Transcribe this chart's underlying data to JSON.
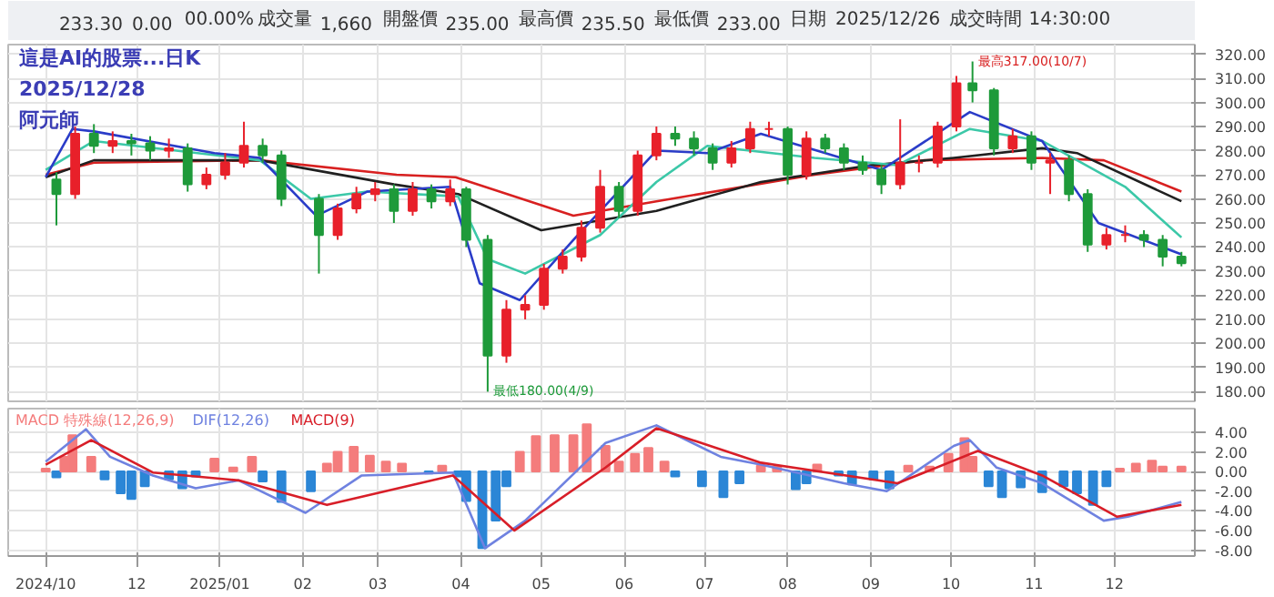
{
  "chart_data": [
    {
      "type": "other",
      "annotations": [
        "233.30",
        "0.00",
        "00.00%",
        "成交量",
        "1,660",
        "開盤價",
        "235.00",
        "最高價",
        "235.50",
        "最低價",
        "233.00",
        "日期",
        "2025/12/26",
        "成交時間",
        "14:30:00"
      ]
    },
    {
      "type": "candlestick",
      "title": "這是AI的股票...日K",
      "subtitle": "2025/12/28",
      "annotations": [
        "阿元師",
        {
          "text": "最高317.00(10/7)",
          "x": "2025-10-07",
          "y": 317
        },
        {
          "text": "最低180.00(4/9)",
          "x": "2025-04-09",
          "y": 180
        }
      ],
      "x": [
        "2024-11-01",
        "2024-11-08",
        "2024-11-15",
        "2024-11-22",
        "2024-11-29",
        "2024-12-06",
        "2024-12-13",
        "2024-12-20",
        "2024-12-27",
        "2025-01-03",
        "2025-01-10",
        "2025-01-17",
        "2025-01-24",
        "2025-02-07",
        "2025-02-14",
        "2025-02-21",
        "2025-02-28",
        "2025-03-07",
        "2025-03-14",
        "2025-03-21",
        "2025-03-28",
        "2025-04-03",
        "2025-04-11",
        "2025-04-18",
        "2025-04-25",
        "2025-05-02",
        "2025-05-09",
        "2025-05-16",
        "2025-05-23",
        "2025-05-30",
        "2025-06-06",
        "2025-06-13",
        "2025-06-20",
        "2025-06-27",
        "2025-07-04",
        "2025-07-11",
        "2025-07-18",
        "2025-07-25",
        "2025-08-01",
        "2025-08-08",
        "2025-08-15",
        "2025-08-22",
        "2025-08-29",
        "2025-09-05",
        "2025-09-12",
        "2025-09-19",
        "2025-09-26",
        "2025-10-03",
        "2025-10-09",
        "2025-10-17",
        "2025-10-24",
        "2025-10-31",
        "2025-11-07",
        "2025-11-14",
        "2025-11-21",
        "2025-11-28",
        "2025-12-05",
        "2025-12-12",
        "2025-12-19",
        "2025-12-26"
      ],
      "ohlc": [
        [
          268,
          271,
          249,
          262
        ],
        [
          262,
          290,
          260,
          287
        ],
        [
          287,
          291,
          279,
          282
        ],
        [
          282,
          288,
          279,
          284
        ],
        [
          284,
          287,
          278,
          283
        ],
        [
          283,
          286,
          276,
          280
        ],
        [
          280,
          285,
          277,
          281
        ],
        [
          281,
          283,
          263,
          266
        ],
        [
          266,
          273,
          264,
          270
        ],
        [
          270,
          279,
          268,
          275
        ],
        [
          275,
          292,
          273,
          282
        ],
        [
          282,
          285,
          275,
          278
        ],
        [
          278,
          280,
          257,
          260
        ],
        [
          260,
          262,
          229,
          245
        ],
        [
          245,
          258,
          243,
          256
        ],
        [
          256,
          265,
          254,
          262
        ],
        [
          262,
          267,
          259,
          264
        ],
        [
          264,
          266,
          250,
          255
        ],
        [
          255,
          267,
          253,
          264
        ],
        [
          264,
          266,
          256,
          259
        ],
        [
          259,
          268,
          257,
          264
        ],
        [
          264,
          265,
          240,
          243
        ],
        [
          243,
          245,
          180,
          195
        ],
        [
          195,
          218,
          192,
          214
        ],
        [
          214,
          220,
          210,
          216
        ],
        [
          216,
          233,
          214,
          231
        ],
        [
          231,
          239,
          229,
          236
        ],
        [
          236,
          251,
          234,
          248
        ],
        [
          248,
          272,
          246,
          265
        ],
        [
          265,
          267,
          252,
          255
        ],
        [
          255,
          280,
          253,
          278
        ],
        [
          278,
          290,
          276,
          287
        ],
        [
          287,
          290,
          282,
          285
        ],
        [
          285,
          288,
          278,
          281
        ],
        [
          281,
          283,
          272,
          275
        ],
        [
          275,
          284,
          273,
          281
        ],
        [
          281,
          292,
          279,
          289
        ],
        [
          289,
          292,
          286,
          289
        ],
        [
          289,
          290,
          266,
          270
        ],
        [
          270,
          288,
          268,
          285
        ],
        [
          285,
          287,
          279,
          281
        ],
        [
          281,
          283,
          272,
          275
        ],
        [
          275,
          278,
          270,
          272
        ],
        [
          272,
          274,
          262,
          266
        ],
        [
          266,
          293,
          264,
          275
        ],
        [
          275,
          278,
          271,
          275
        ],
        [
          275,
          292,
          273,
          290
        ],
        [
          290,
          311,
          288,
          308
        ],
        [
          308,
          317,
          300,
          305
        ],
        [
          305,
          306,
          278,
          281
        ],
        [
          281,
          289,
          279,
          286
        ],
        [
          286,
          288,
          272,
          275
        ],
        [
          275,
          279,
          262,
          276
        ],
        [
          276,
          278,
          259,
          262
        ],
        [
          262,
          264,
          238,
          241
        ],
        [
          241,
          248,
          239,
          245
        ],
        [
          245,
          249,
          242,
          245
        ],
        [
          245,
          247,
          240,
          243
        ],
        [
          243,
          245,
          232,
          236
        ],
        [
          236,
          238,
          232,
          233.3
        ]
      ],
      "colors": [
        "#1e9a3a",
        "#e8202a",
        "#1e9a3a",
        "#e8202a",
        "#1e9a3a",
        "#1e9a3a",
        "#e8202a",
        "#1e9a3a",
        "#e8202a",
        "#e8202a",
        "#e8202a",
        "#1e9a3a",
        "#1e9a3a",
        "#1e9a3a",
        "#e8202a",
        "#e8202a",
        "#e8202a",
        "#1e9a3a",
        "#e8202a",
        "#1e9a3a",
        "#e8202a",
        "#1e9a3a",
        "#1e9a3a",
        "#e8202a",
        "#e8202a",
        "#e8202a",
        "#e8202a",
        "#e8202a",
        "#e8202a",
        "#1e9a3a",
        "#e8202a",
        "#e8202a",
        "#1e9a3a",
        "#1e9a3a",
        "#1e9a3a",
        "#e8202a",
        "#e8202a",
        "#e8202a",
        "#1e9a3a",
        "#e8202a",
        "#1e9a3a",
        "#1e9a3a",
        "#1e9a3a",
        "#1e9a3a",
        "#e8202a",
        "#e8202a",
        "#e8202a",
        "#e8202a",
        "#1e9a3a",
        "#1e9a3a",
        "#e8202a",
        "#1e9a3a",
        "#e8202a",
        "#1e9a3a",
        "#1e9a3a",
        "#e8202a",
        "#e8202a",
        "#1e9a3a",
        "#1e9a3a",
        "#1e9a3a"
      ],
      "series": [
        {
          "type": "line",
          "color": "#d82020",
          "x": [
            "2024-10-28",
            "2024-11-15",
            "2025-01-16",
            "2025-03-08",
            "2025-03-30",
            "2025-05-13",
            "2025-06-13",
            "2025-08-11",
            "2025-09-21",
            "2025-11-04",
            "2025-11-27",
            "2025-12-26"
          ],
          "values": [
            270,
            275,
            276,
            270,
            269,
            253,
            259,
            270,
            276,
            277,
            276,
            263
          ]
        },
        {
          "type": "line",
          "color": "#202020",
          "x": [
            "2024-10-28",
            "2024-11-15",
            "2025-01-16",
            "2025-03-07",
            "2025-03-31",
            "2025-05-01",
            "2025-06-13",
            "2025-07-22",
            "2025-09-01",
            "2025-10-02",
            "2025-11-04",
            "2025-11-17",
            "2025-12-26"
          ],
          "values": [
            269,
            276,
            276,
            266,
            262,
            247,
            255,
            267,
            274,
            277,
            281,
            279,
            259
          ]
        },
        {
          "type": "line",
          "color": "#3cc8a8",
          "x": [
            "2024-10-28",
            "2024-11-15",
            "2025-01-16",
            "2025-02-04",
            "2025-02-25",
            "2025-03-31",
            "2025-04-11",
            "2025-04-25",
            "2025-05-23",
            "2025-06-13",
            "2025-07-02",
            "2025-08-11",
            "2025-09-11",
            "2025-10-08",
            "2025-11-04",
            "2025-12-05",
            "2025-12-26"
          ],
          "values": [
            272,
            284,
            276,
            260,
            263,
            261,
            235,
            229,
            245,
            267,
            282,
            277,
            274,
            289,
            284,
            265,
            244
          ]
        },
        {
          "type": "line",
          "color": "#2a3cc8",
          "x": [
            "2024-10-28",
            "2024-11-07",
            "2024-11-15",
            "2024-12-30",
            "2025-01-16",
            "2025-02-06",
            "2025-02-25",
            "2025-03-28",
            "2025-04-08",
            "2025-04-23",
            "2025-05-13",
            "2025-06-13",
            "2025-07-02",
            "2025-07-22",
            "2025-09-05",
            "2025-10-08",
            "2025-11-04",
            "2025-11-25",
            "2025-12-26"
          ],
          "values": [
            269,
            289,
            288,
            279,
            277,
            253,
            263,
            265,
            225,
            218,
            243,
            280,
            279,
            287,
            272,
            296,
            284,
            250,
            237
          ]
        }
      ],
      "xlim": [
        "2024-10-14",
        "2025-12-31"
      ],
      "xticks": [
        {
          "value": "2024-10-28",
          "label": null
        },
        {
          "value": "2024-12-01",
          "label": null
        },
        {
          "value": "2025-01-01",
          "label": null
        },
        {
          "value": "2025-02-01",
          "label": null
        },
        {
          "value": "2025-03-01",
          "label": null
        },
        {
          "value": "2025-04-01",
          "label": null
        },
        {
          "value": "2025-05-01",
          "label": null
        },
        {
          "value": "2025-06-01",
          "label": null
        },
        {
          "value": "2025-07-01",
          "label": null
        },
        {
          "value": "2025-08-01",
          "label": null
        },
        {
          "value": "2025-09-01",
          "label": null
        },
        {
          "value": "2025-10-01",
          "label": null
        },
        {
          "value": "2025-11-01",
          "label": null
        },
        {
          "value": "2025-12-01",
          "label": null
        }
      ],
      "ylim": [
        176,
        324
      ],
      "yticks": [
        {
          "value": 180,
          "label": "180.00"
        },
        {
          "value": 190,
          "label": "190.00"
        },
        {
          "value": 200,
          "label": "200.00"
        },
        {
          "value": 210,
          "label": "210.00"
        },
        {
          "value": 220,
          "label": "220.00"
        },
        {
          "value": 230,
          "label": "230.00"
        },
        {
          "value": 240,
          "label": "240.00"
        },
        {
          "value": 250,
          "label": "250.00"
        },
        {
          "value": 260,
          "label": "260.00"
        },
        {
          "value": 270,
          "label": "270.00"
        },
        {
          "value": 280,
          "label": "280.00"
        },
        {
          "value": 290,
          "label": "290.00"
        },
        {
          "value": 300,
          "label": "300.00"
        },
        {
          "value": 310,
          "label": "310.00"
        },
        {
          "value": 320,
          "label": "320.00"
        }
      ],
      "tick_labels": "y",
      "grid": true
    },
    {
      "type": "bar",
      "series": [
        {
          "type": "bar",
          "name": "MACD 特殊線(12,26,9)",
          "x": [
            "2024-10-28",
            "2024-11-01",
            "2024-11-04",
            "2024-11-07",
            "2024-11-14",
            "2024-11-19",
            "2024-11-25",
            "2024-11-29",
            "2024-12-04",
            "2024-12-09",
            "2024-12-13",
            "2024-12-18",
            "2024-12-23",
            "2024-12-30",
            "2025-01-06",
            "2025-01-13",
            "2025-01-17",
            "2025-01-24",
            "2025-02-04",
            "2025-02-10",
            "2025-02-14",
            "2025-02-20",
            "2025-02-26",
            "2025-03-04",
            "2025-03-10",
            "2025-03-14",
            "2025-03-20",
            "2025-03-25",
            "2025-03-31",
            "2025-04-03",
            "2025-04-09",
            "2025-04-14",
            "2025-04-18",
            "2025-04-23",
            "2025-04-29",
            "2025-05-06",
            "2025-05-13",
            "2025-05-18",
            "2025-05-25",
            "2025-05-30",
            "2025-06-05",
            "2025-06-10",
            "2025-06-16",
            "2025-06-20",
            "2025-06-30",
            "2025-07-08",
            "2025-07-14",
            "2025-07-22",
            "2025-07-28",
            "2025-08-04",
            "2025-08-08",
            "2025-08-12",
            "2025-08-20",
            "2025-08-25",
            "2025-09-02",
            "2025-09-08",
            "2025-09-15",
            "2025-09-23",
            "2025-09-30",
            "2025-10-06",
            "2025-10-09",
            "2025-10-15",
            "2025-10-20",
            "2025-10-27",
            "2025-11-04",
            "2025-11-12",
            "2025-11-17",
            "2025-11-23",
            "2025-11-28",
            "2025-12-03",
            "2025-12-09",
            "2025-12-15",
            "2025-12-19",
            "2025-12-26"
          ],
          "values": [
            0.3,
            -0.6,
            1.5,
            3.7,
            1.5,
            -0.8,
            -2.2,
            -2.8,
            -1.5,
            null,
            -0.8,
            -1.7,
            -0.5,
            1.3,
            0.4,
            1.5,
            -1.0,
            -3.1,
            -2.0,
            0.8,
            2.0,
            2.5,
            1.6,
            1.0,
            0.8,
            null,
            -0.2,
            0.6,
            -0.5,
            -3.0,
            -7.8,
            -5.0,
            -1.5,
            2.0,
            3.6,
            3.7,
            3.7,
            4.8,
            2.6,
            1.0,
            1.8,
            2.4,
            1.0,
            -0.5,
            -1.5,
            -2.6,
            -1.2,
            0.6,
            0.5,
            -1.8,
            -1.2,
            0.7,
            -0.4,
            -1.3,
            -0.8,
            -1.7,
            0.6,
            0.5,
            1.8,
            3.4,
            1.5,
            -1.5,
            -2.6,
            -1.6,
            -2.1,
            -1.5,
            -2.2,
            -3.4,
            -1.5,
            0.3,
            0.8,
            1.1,
            0.5,
            0.5
          ],
          "colors": [
            "#f47c7c",
            "#2b86d6",
            "#f47c7c",
            "#f47c7c",
            "#f47c7c",
            "#2b86d6",
            "#2b86d6",
            "#2b86d6",
            "#2b86d6",
            "#2b86d6",
            "#2b86d6",
            "#2b86d6",
            "#2b86d6",
            "#f47c7c",
            "#f47c7c",
            "#f47c7c",
            "#2b86d6",
            "#2b86d6",
            "#2b86d6",
            "#f47c7c",
            "#f47c7c",
            "#f47c7c",
            "#f47c7c",
            "#f47c7c",
            "#f47c7c",
            "#2b86d6",
            "#2b86d6",
            "#f47c7c",
            "#2b86d6",
            "#2b86d6",
            "#2b86d6",
            "#2b86d6",
            "#2b86d6",
            "#f47c7c",
            "#f47c7c",
            "#f47c7c",
            "#f47c7c",
            "#f47c7c",
            "#f47c7c",
            "#f47c7c",
            "#f47c7c",
            "#f47c7c",
            "#f47c7c",
            "#2b86d6",
            "#2b86d6",
            "#2b86d6",
            "#2b86d6",
            "#f47c7c",
            "#f47c7c",
            "#2b86d6",
            "#2b86d6",
            "#f47c7c",
            "#2b86d6",
            "#2b86d6",
            "#2b86d6",
            "#2b86d6",
            "#f47c7c",
            "#f47c7c",
            "#f47c7c",
            "#f47c7c",
            "#f47c7c",
            "#2b86d6",
            "#2b86d6",
            "#2b86d6",
            "#2b86d6",
            "#2b86d6",
            "#2b86d6",
            "#2b86d6",
            "#2b86d6",
            "#f47c7c",
            "#f47c7c",
            "#f47c7c",
            "#f47c7c",
            "#f47c7c"
          ]
        },
        {
          "type": "line",
          "name": "DIF(12,26)",
          "color": "#6f82e0",
          "x": [
            "2024-10-28",
            "2024-11-12",
            "2024-11-21",
            "2024-12-07",
            "2024-12-23",
            "2025-01-08",
            "2025-02-02",
            "2025-02-23",
            "2025-03-29",
            "2025-04-10",
            "2025-04-25",
            "2025-05-25",
            "2025-06-13",
            "2025-07-07",
            "2025-07-22",
            "2025-08-22",
            "2025-09-07",
            "2025-10-02",
            "2025-10-08",
            "2025-10-18",
            "2025-11-04",
            "2025-11-27",
            "2025-12-06",
            "2025-12-26"
          ],
          "values": [
            1.0,
            4.3,
            1.5,
            -0.4,
            -1.7,
            -0.9,
            -4.2,
            -0.4,
            -0.1,
            -7.8,
            -5.0,
            2.9,
            4.7,
            1.5,
            0.7,
            -1.2,
            -2.0,
            2.6,
            3.2,
            0.4,
            -1.2,
            -5.0,
            -4.6,
            -3.1
          ]
        },
        {
          "type": "line",
          "name": "MACD(9)",
          "color": "#d81e28",
          "x": [
            "2024-10-28",
            "2024-11-14",
            "2024-12-07",
            "2025-01-08",
            "2025-02-10",
            "2025-03-29",
            "2025-04-21",
            "2025-05-25",
            "2025-06-13",
            "2025-07-22",
            "2025-09-11",
            "2025-10-11",
            "2025-11-04",
            "2025-12-02",
            "2025-12-26"
          ],
          "values": [
            0.7,
            3.2,
            -0.1,
            -0.9,
            -3.4,
            -0.4,
            -6.0,
            0.4,
            4.4,
            0.9,
            -1.2,
            2.1,
            -0.4,
            -4.6,
            -3.4
          ]
        }
      ],
      "xlim": [
        "2024-10-14",
        "2025-12-31"
      ],
      "xticks": [
        {
          "value": "2024-10-28",
          "label": "2024/10"
        },
        {
          "value": "2024-12-01",
          "label": "12"
        },
        {
          "value": "2025-01-01",
          "label": "2025/01"
        },
        {
          "value": "2025-02-01",
          "label": "02"
        },
        {
          "value": "2025-03-01",
          "label": "03"
        },
        {
          "value": "2025-04-01",
          "label": "04"
        },
        {
          "value": "2025-05-01",
          "label": "05"
        },
        {
          "value": "2025-06-01",
          "label": "06"
        },
        {
          "value": "2025-07-01",
          "label": "07"
        },
        {
          "value": "2025-08-01",
          "label": "08"
        },
        {
          "value": "2025-09-01",
          "label": "09"
        },
        {
          "value": "2025-10-01",
          "label": "10"
        },
        {
          "value": "2025-11-01",
          "label": "11"
        },
        {
          "value": "2025-12-01",
          "label": "12"
        }
      ],
      "ylim": [
        -8.6,
        6.4
      ],
      "yticks": [
        {
          "value": 4,
          "label": "4.00"
        },
        {
          "value": 2,
          "label": "2.00"
        },
        {
          "value": 0,
          "label": "0.00"
        },
        {
          "value": -2,
          "label": "-2.00"
        },
        {
          "value": -4,
          "label": "-4.00"
        },
        {
          "value": -6,
          "label": "-6.00"
        },
        {
          "value": -8,
          "label": "-8.00"
        }
      ],
      "grid": true
    }
  ]
}
